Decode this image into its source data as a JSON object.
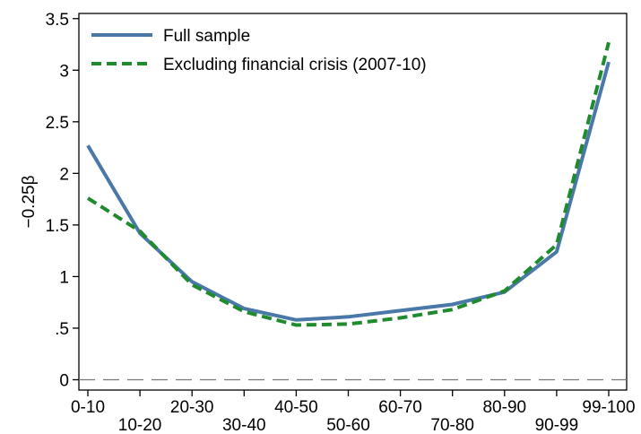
{
  "chart_data": {
    "type": "line",
    "categories": [
      "0-10",
      "10-20",
      "20-30",
      "30-40",
      "40-50",
      "50-60",
      "60-70",
      "70-80",
      "80-90",
      "90-99",
      "99-100"
    ],
    "series": [
      {
        "name": "Full sample",
        "color": "#4a78a8",
        "dash": "solid",
        "values": [
          2.27,
          1.42,
          0.95,
          0.69,
          0.58,
          0.61,
          0.67,
          0.73,
          0.85,
          1.24,
          3.08
        ]
      },
      {
        "name": "Excluding financial crisis (2007-10)",
        "color": "#1f8a2e",
        "dash": "dashed",
        "values": [
          1.76,
          1.44,
          0.92,
          0.66,
          0.53,
          0.54,
          0.6,
          0.68,
          0.86,
          1.31,
          3.27
        ]
      }
    ],
    "ylabel": "−0.25β",
    "ylim": [
      -0.1,
      3.55
    ],
    "yticks": [
      {
        "value": 0,
        "label": "0"
      },
      {
        "value": 0.5,
        "label": ".5"
      },
      {
        "value": 1,
        "label": "1"
      },
      {
        "value": 1.5,
        "label": "1.5"
      },
      {
        "value": 2,
        "label": "2"
      },
      {
        "value": 2.5,
        "label": "2.5"
      },
      {
        "value": 3,
        "label": "3"
      },
      {
        "value": 3.5,
        "label": "3.5"
      }
    ],
    "reference_line": {
      "value": 0,
      "style": "dashed",
      "color": "#777777"
    },
    "legend_position": "top-left",
    "grid": false
  }
}
